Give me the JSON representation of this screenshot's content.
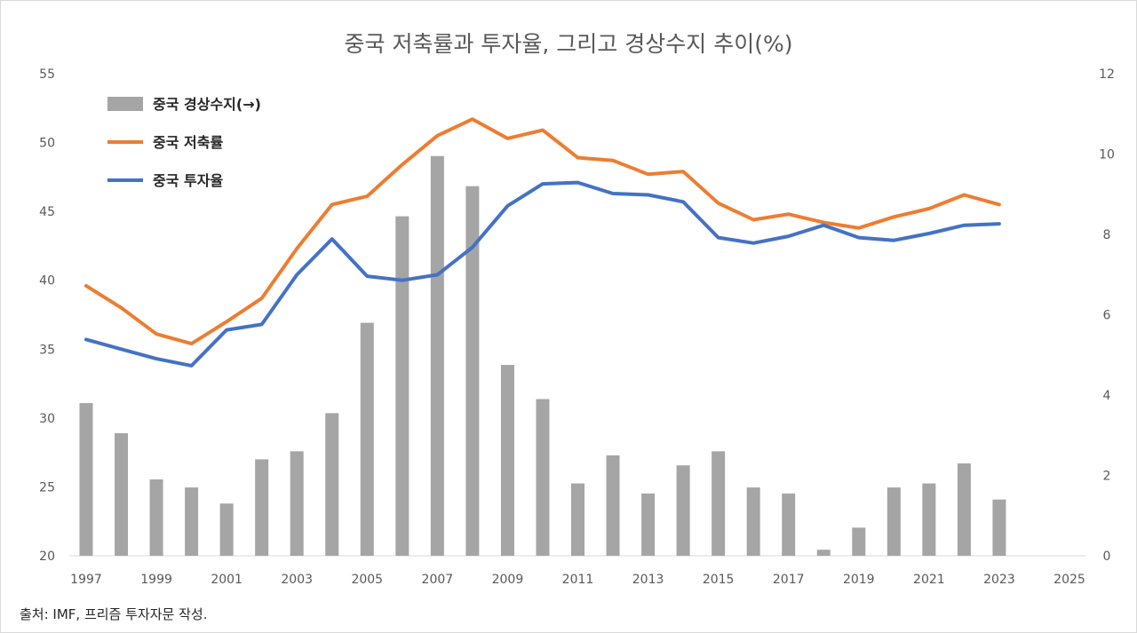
{
  "chart_data": {
    "type": "bar+line",
    "title": "중국 저축률과 투자율, 그리고 경상수지 추이(%)",
    "source": "출처: IMF, 프리즘 투자자문 작성.",
    "x_ticks": [
      "1997",
      "1999",
      "2001",
      "2003",
      "2005",
      "2007",
      "2009",
      "2011",
      "2013",
      "2015",
      "2017",
      "2019",
      "2021",
      "2023",
      "2025"
    ],
    "x_range": [
      1997,
      2025
    ],
    "years": [
      1997,
      1998,
      1999,
      2000,
      2001,
      2002,
      2003,
      2004,
      2005,
      2006,
      2007,
      2008,
      2009,
      2010,
      2011,
      2012,
      2013,
      2014,
      2015,
      2016,
      2017,
      2018,
      2019,
      2020,
      2021,
      2022,
      2023
    ],
    "left_axis": {
      "ylim": [
        20,
        55
      ],
      "ticks": [
        "20",
        "25",
        "30",
        "35",
        "40",
        "45",
        "50",
        "55"
      ]
    },
    "right_axis": {
      "ylim": [
        0,
        12
      ],
      "ticks": [
        "0",
        "2",
        "4",
        "6",
        "8",
        "10",
        "12"
      ]
    },
    "legend_position": "top-left",
    "series": [
      {
        "name": "중국 경상수지(→)",
        "type": "bar",
        "axis": "right",
        "color": "#a5a5a5",
        "values": [
          3.8,
          3.05,
          1.9,
          1.7,
          1.3,
          2.4,
          2.6,
          3.55,
          5.8,
          8.45,
          9.95,
          9.2,
          4.75,
          3.9,
          1.8,
          2.5,
          1.55,
          2.25,
          2.6,
          1.7,
          1.55,
          0.15,
          0.7,
          1.7,
          1.8,
          2.3,
          1.4
        ]
      },
      {
        "name": "중국 저축률",
        "type": "line",
        "axis": "left",
        "color": "#ed7d31",
        "values": [
          39.6,
          38.0,
          36.1,
          35.4,
          37.0,
          38.7,
          42.3,
          45.5,
          46.1,
          48.4,
          50.5,
          51.7,
          50.3,
          50.9,
          48.9,
          48.7,
          47.7,
          47.9,
          45.6,
          44.4,
          44.8,
          44.2,
          43.8,
          44.6,
          45.2,
          46.2,
          45.5
        ]
      },
      {
        "name": "중국 투자율",
        "type": "line",
        "axis": "left",
        "color": "#4472c4",
        "values": [
          35.7,
          35.0,
          34.3,
          33.8,
          36.4,
          36.8,
          40.4,
          43.0,
          40.3,
          40.0,
          40.4,
          42.4,
          45.4,
          47.0,
          47.1,
          46.3,
          46.2,
          45.7,
          43.1,
          42.7,
          43.2,
          44.0,
          43.1,
          42.9,
          43.4,
          44.0,
          44.1
        ]
      }
    ]
  }
}
